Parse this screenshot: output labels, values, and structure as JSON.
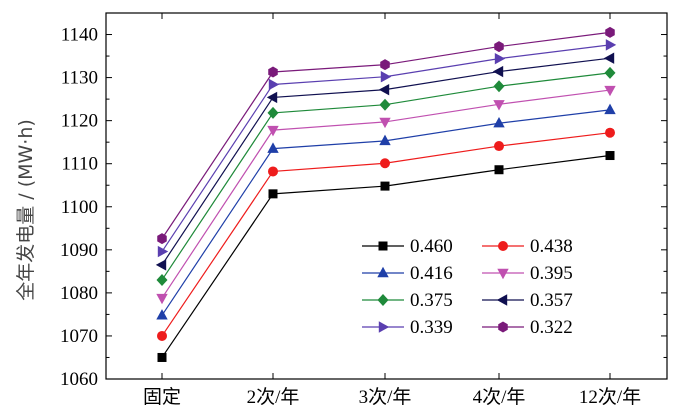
{
  "chart_data": {
    "type": "line",
    "title": "",
    "xlabel": "",
    "ylabel": "全年发电量 / (MW·h)",
    "categories": [
      "固定",
      "2次/年",
      "3次/年",
      "4次/年",
      "12次/年"
    ],
    "ylim": [
      1060,
      1145
    ],
    "yticks": [
      1060,
      1070,
      1080,
      1090,
      1100,
      1110,
      1120,
      1130,
      1140
    ],
    "grid": false,
    "legend_position": "lower-right",
    "series": [
      {
        "name": "0.460",
        "color": "#000000",
        "marker": "square",
        "values": [
          1065.0,
          1103.0,
          1104.8,
          1108.6,
          1111.9
        ]
      },
      {
        "name": "0.438",
        "color": "#ee1c1c",
        "marker": "circle",
        "values": [
          1070.0,
          1108.2,
          1110.1,
          1114.1,
          1117.2
        ]
      },
      {
        "name": "0.416",
        "color": "#1f3fa8",
        "marker": "triangle-up",
        "values": [
          1074.8,
          1113.5,
          1115.3,
          1119.4,
          1122.5
        ]
      },
      {
        "name": "0.395",
        "color": "#c050b0",
        "marker": "triangle-down",
        "values": [
          1078.8,
          1117.8,
          1119.7,
          1123.8,
          1127.1
        ]
      },
      {
        "name": "0.375",
        "color": "#1f8a3a",
        "marker": "diamond",
        "values": [
          1083.0,
          1121.8,
          1123.7,
          1128.0,
          1131.1
        ]
      },
      {
        "name": "0.357",
        "color": "#101050",
        "marker": "triangle-left",
        "values": [
          1086.5,
          1125.4,
          1127.2,
          1131.4,
          1134.5
        ]
      },
      {
        "name": "0.339",
        "color": "#5a3fb0",
        "marker": "triangle-right",
        "values": [
          1089.6,
          1128.4,
          1130.2,
          1134.4,
          1137.6
        ]
      },
      {
        "name": "0.322",
        "color": "#7a1a7a",
        "marker": "hexagon",
        "values": [
          1092.6,
          1131.3,
          1133.0,
          1137.2,
          1140.5
        ]
      }
    ]
  }
}
